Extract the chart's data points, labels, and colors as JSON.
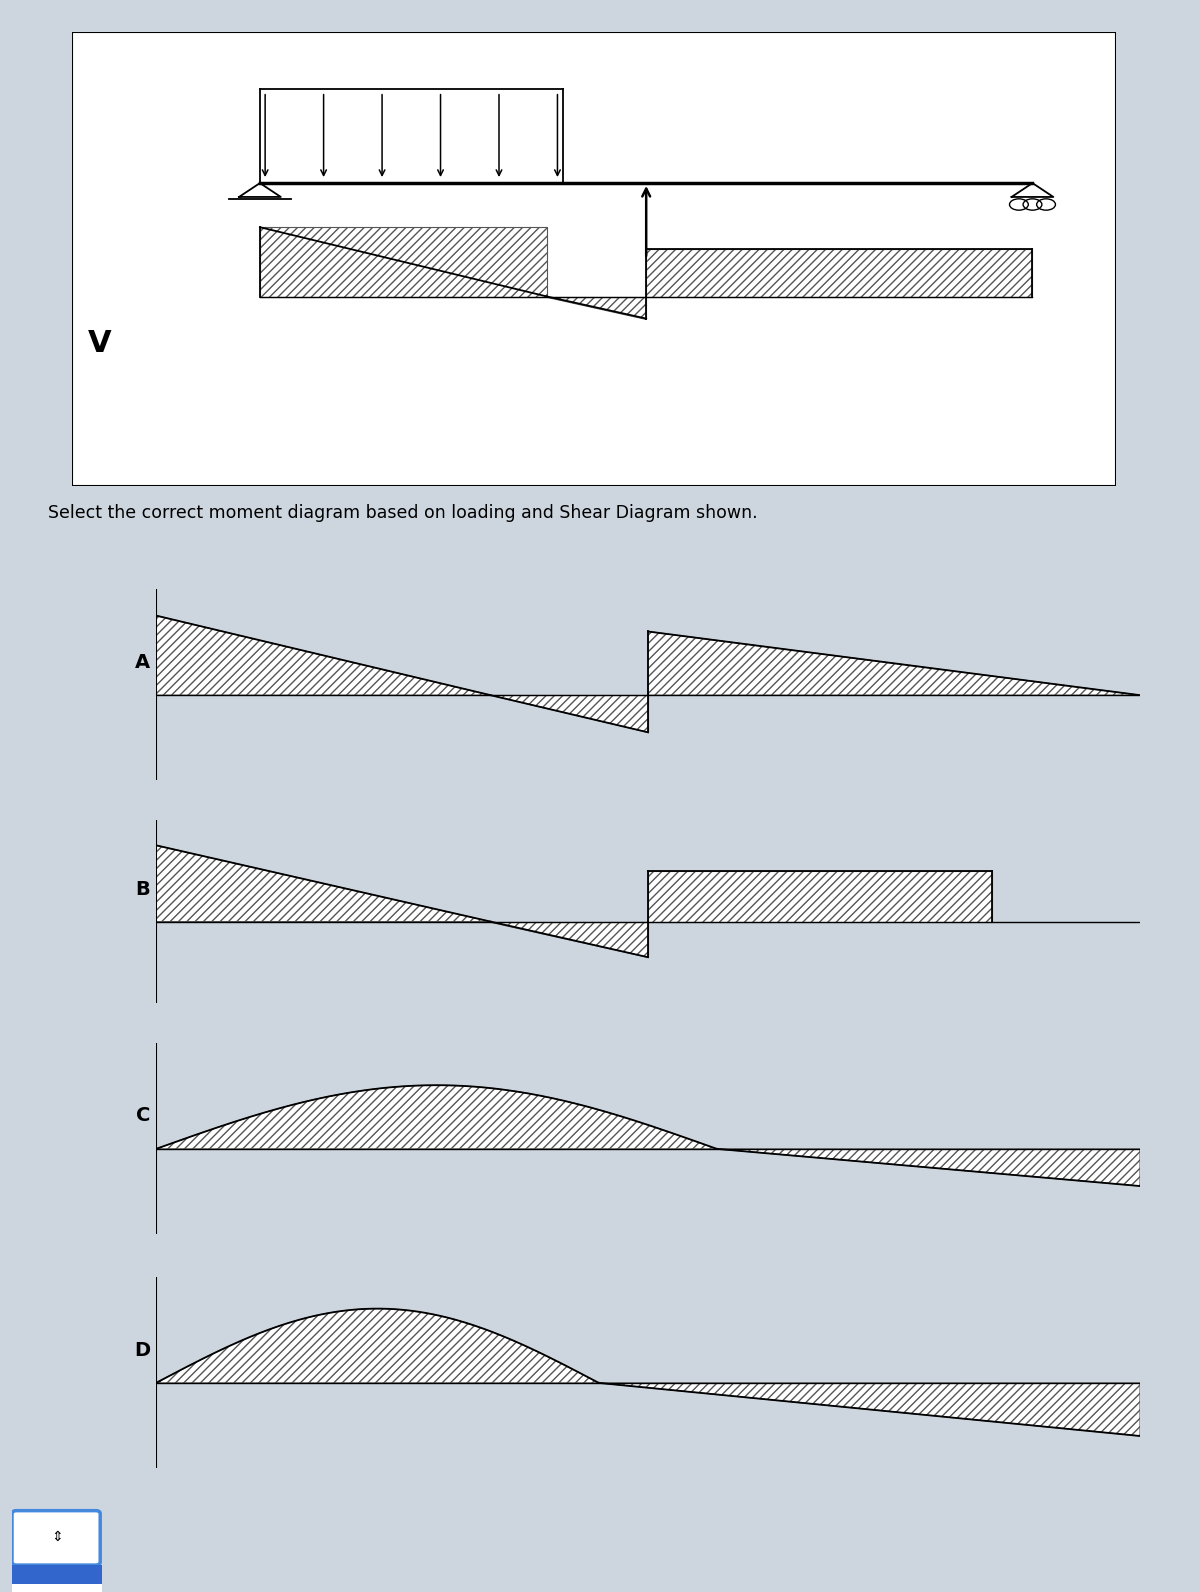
{
  "bg_outer": "#cdd5de",
  "bg_panel": "#e8e8e8",
  "bg_answer": "#dde3ea",
  "hatch": "////",
  "ec": "#444444",
  "title_text": "Select the correct moment diagram based on loading and Shear Diagram shown.",
  "title_fontsize": 12.5,
  "V_label": "V",
  "labels": [
    "A",
    "B",
    "C",
    "D"
  ],
  "answer_labels": [
    "A",
    "B",
    "C",
    "D"
  ],
  "figsize": [
    12.0,
    15.92
  ],
  "dpi": 100
}
